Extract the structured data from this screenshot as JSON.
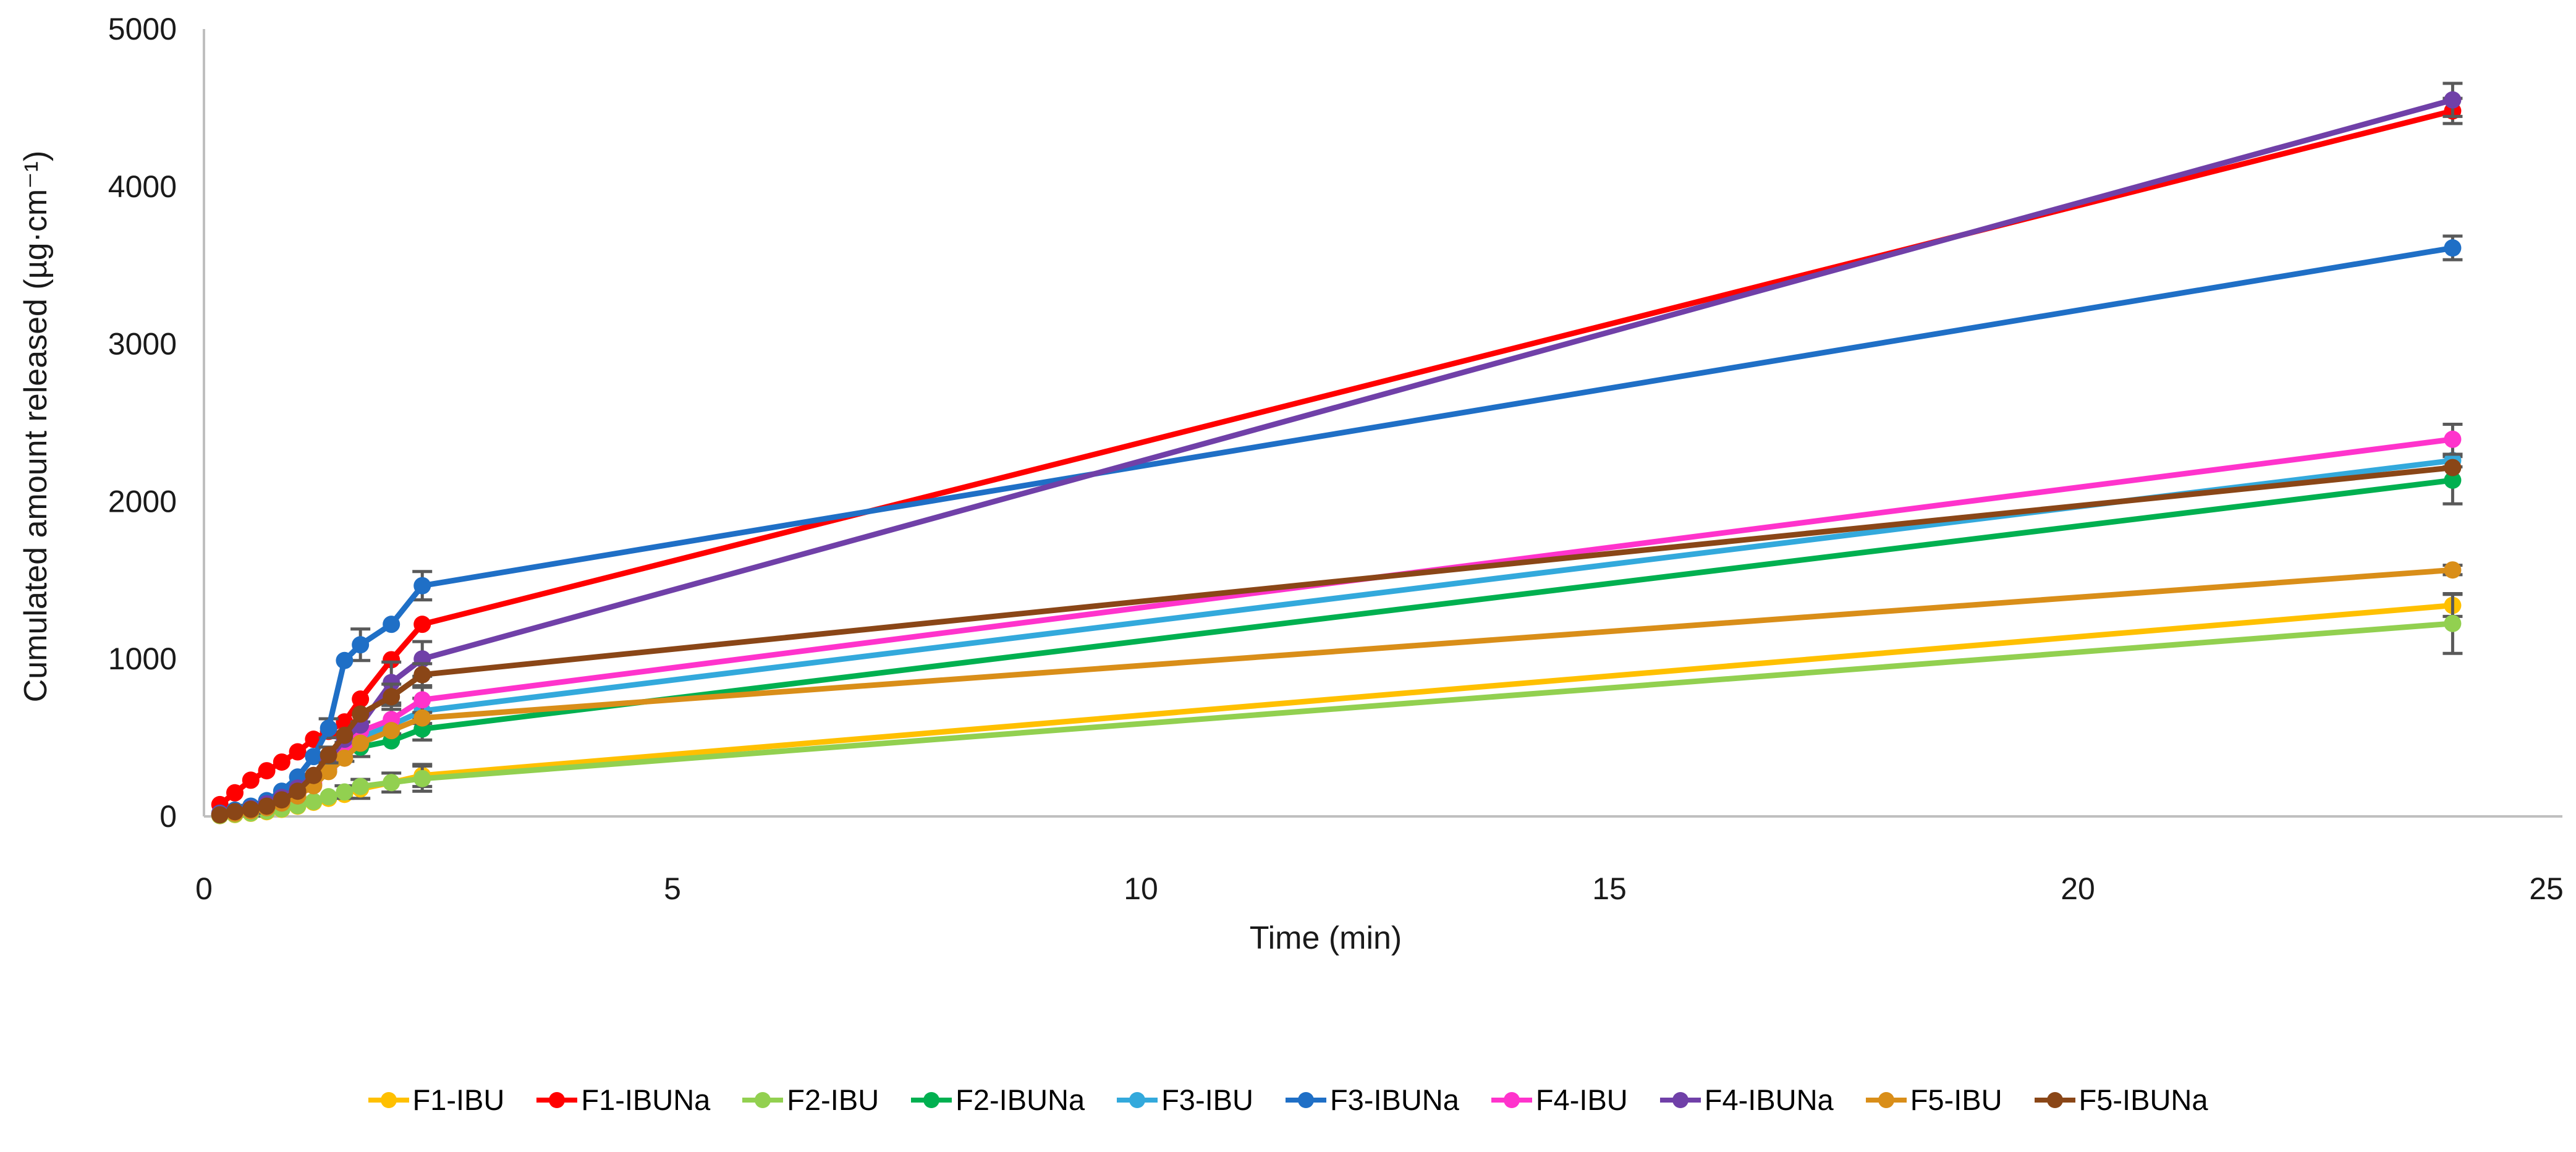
{
  "figure": {
    "background": "#FFFFFF",
    "axis_color": "#BFBFBF",
    "error_bar_color": "#595959",
    "text_color": "#1A1A1A"
  },
  "chart_data": {
    "type": "line",
    "title": "",
    "xlabel": "Time (min)",
    "ylabel": "Cumulated amount released (µg·cm⁻¹)",
    "xlim": [
      0,
      25
    ],
    "ylim": [
      0,
      5000
    ],
    "xticks": [
      0,
      5,
      10,
      15,
      20,
      25
    ],
    "yticks": [
      0,
      1000,
      2000,
      3000,
      4000,
      5000
    ],
    "grid": false,
    "legend_position": "bottom",
    "x": [
      0.17,
      0.33,
      0.5,
      0.67,
      0.83,
      1.0,
      1.17,
      1.33,
      1.5,
      1.67,
      2.0,
      2.33,
      24
    ],
    "series": [
      {
        "name": "F1-IBU",
        "color": "#FFC000",
        "values": [
          5,
          12,
          20,
          30,
          45,
          65,
          90,
          115,
          140,
          175,
          215,
          260,
          1340
        ],
        "err": [
          0,
          0,
          0,
          0,
          0,
          0,
          0,
          0,
          0,
          60,
          0,
          70,
          70
        ]
      },
      {
        "name": "F1-IBUNa",
        "color": "#FF0000",
        "values": [
          75,
          150,
          230,
          290,
          345,
          410,
          490,
          540,
          600,
          745,
          995,
          1220,
          4480
        ],
        "err": [
          0,
          0,
          0,
          0,
          0,
          0,
          0,
          0,
          0,
          0,
          0,
          0,
          80
        ]
      },
      {
        "name": "F2-IBU",
        "color": "#92D050",
        "values": [
          6,
          14,
          22,
          34,
          48,
          68,
          95,
          125,
          155,
          190,
          215,
          240,
          1225
        ],
        "err": [
          0,
          0,
          20,
          0,
          0,
          0,
          0,
          0,
          40,
          0,
          60,
          80,
          190
        ]
      },
      {
        "name": "F2-IBUNa",
        "color": "#00B050",
        "values": [
          12,
          25,
          45,
          70,
          110,
          160,
          230,
          330,
          410,
          440,
          480,
          555,
          2135
        ],
        "err": [
          0,
          0,
          25,
          0,
          0,
          0,
          0,
          0,
          0,
          60,
          0,
          70,
          150
        ]
      },
      {
        "name": "F3-IBU",
        "color": "#33A9DC",
        "values": [
          12,
          22,
          35,
          55,
          85,
          130,
          200,
          300,
          410,
          500,
          580,
          670,
          2260
        ],
        "err": [
          0,
          0,
          0,
          0,
          0,
          0,
          0,
          0,
          60,
          0,
          0,
          80,
          40
        ]
      },
      {
        "name": "F3-IBUNa",
        "color": "#1F6FC6",
        "values": [
          20,
          40,
          65,
          100,
          160,
          250,
          380,
          560,
          990,
          1090,
          1220,
          1465,
          3610
        ],
        "err": [
          0,
          0,
          0,
          0,
          0,
          0,
          0,
          60,
          0,
          100,
          0,
          90,
          75
        ]
      },
      {
        "name": "F4-IBU",
        "color": "#FF33CC",
        "values": [
          15,
          25,
          40,
          60,
          90,
          140,
          210,
          310,
          425,
          540,
          615,
          740,
          2395
        ],
        "err": [
          0,
          0,
          0,
          0,
          0,
          0,
          0,
          0,
          0,
          60,
          90,
          80,
          95
        ]
      },
      {
        "name": "F4-IBUNa",
        "color": "#7040A8",
        "values": [
          15,
          30,
          50,
          80,
          120,
          180,
          260,
          360,
          490,
          580,
          850,
          1000,
          4550
        ],
        "err": [
          0,
          0,
          0,
          0,
          0,
          0,
          0,
          0,
          0,
          0,
          130,
          110,
          105
        ]
      },
      {
        "name": "F5-IBU",
        "color": "#D98E19",
        "values": [
          10,
          20,
          35,
          55,
          85,
          130,
          195,
          285,
          370,
          465,
          545,
          625,
          1565
        ],
        "err": [
          0,
          0,
          0,
          0,
          0,
          0,
          0,
          0,
          0,
          0,
          0,
          0,
          30
        ]
      },
      {
        "name": "F5-IBUNa",
        "color": "#8A4617",
        "values": [
          10,
          30,
          45,
          65,
          105,
          160,
          260,
          390,
          515,
          650,
          760,
          900,
          2215
        ],
        "err": [
          0,
          0,
          0,
          0,
          0,
          0,
          0,
          50,
          0,
          0,
          80,
          70,
          0
        ]
      }
    ]
  }
}
